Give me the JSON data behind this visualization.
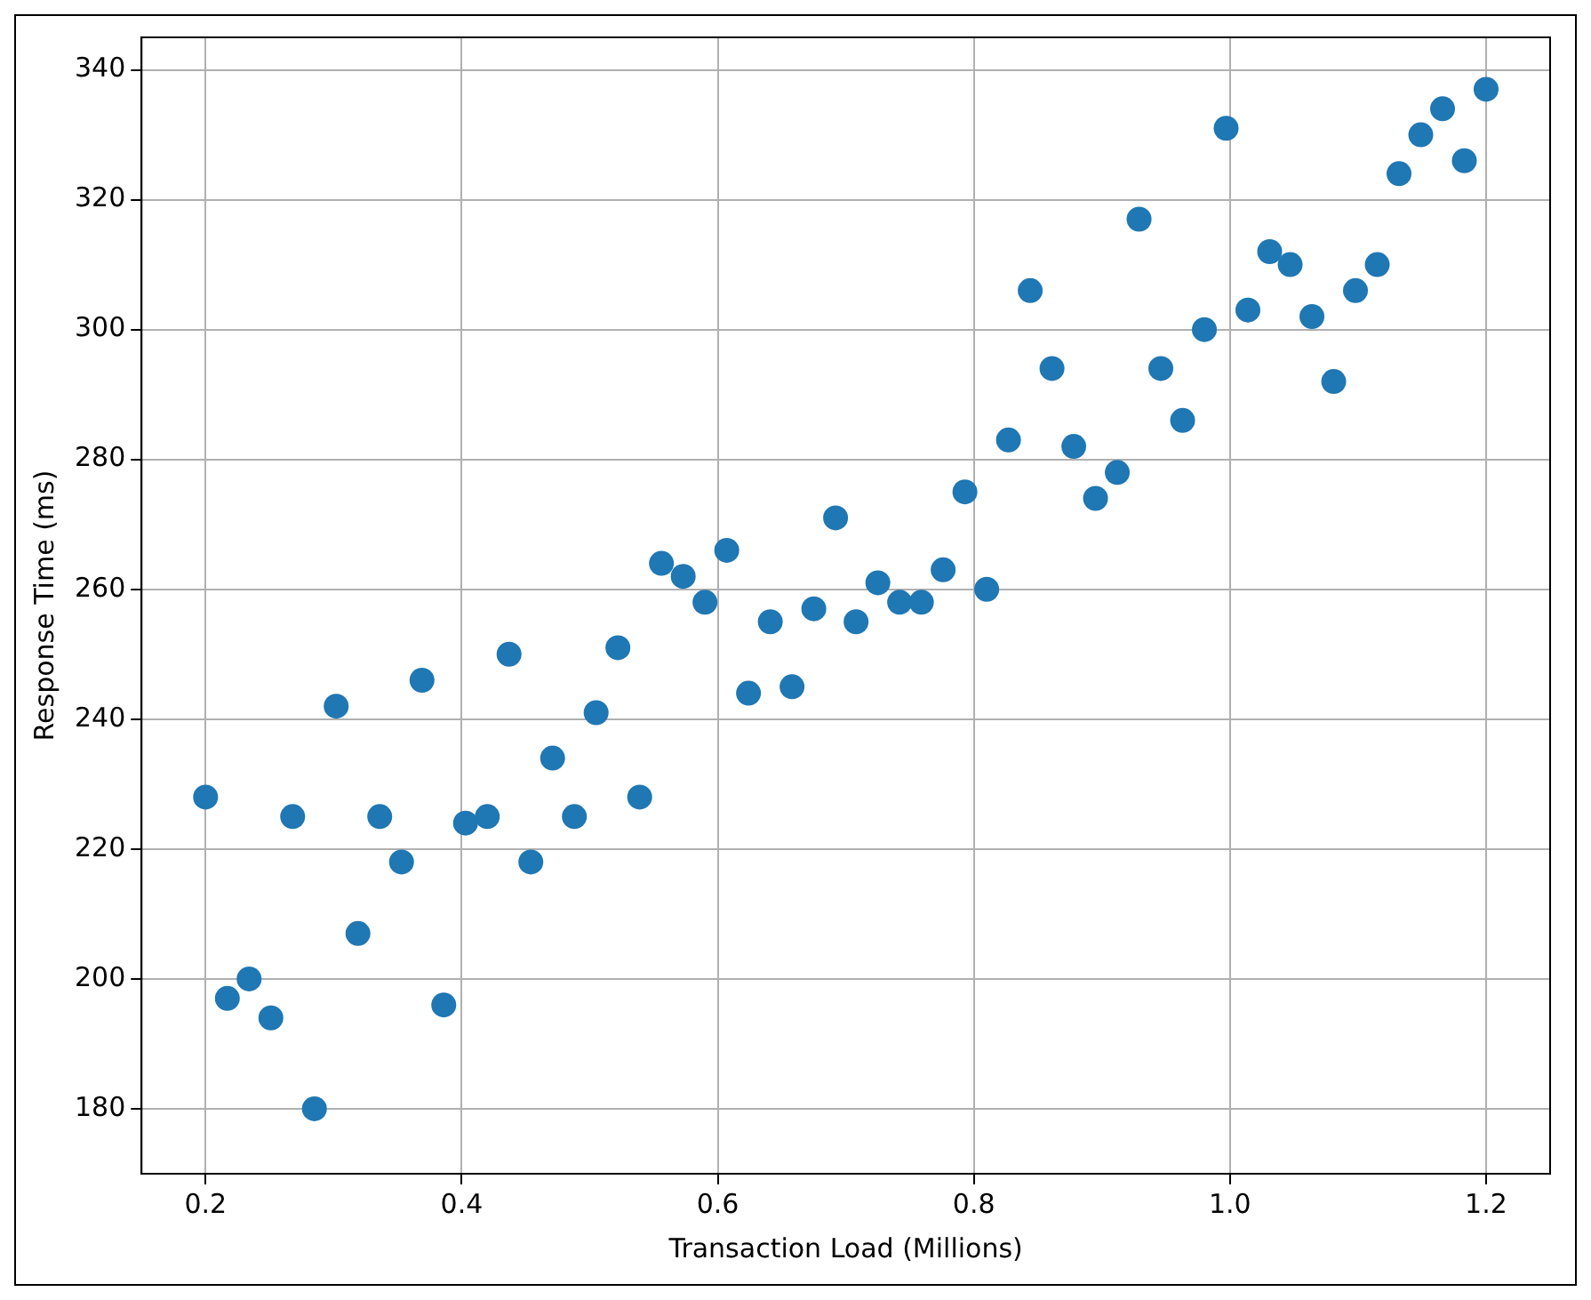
{
  "chart_data": {
    "type": "scatter",
    "xlabel": "Transaction Load (Millions)",
    "ylabel": "Response Time (ms)",
    "x": [
      0.2,
      0.217,
      0.234,
      0.251,
      0.268,
      0.285,
      0.302,
      0.319,
      0.336,
      0.353,
      0.369,
      0.386,
      0.403,
      0.42,
      0.437,
      0.454,
      0.471,
      0.488,
      0.505,
      0.522,
      0.539,
      0.556,
      0.573,
      0.59,
      0.607,
      0.624,
      0.641,
      0.658,
      0.675,
      0.692,
      0.708,
      0.725,
      0.742,
      0.759,
      0.776,
      0.793,
      0.81,
      0.827,
      0.844,
      0.861,
      0.878,
      0.895,
      0.912,
      0.929,
      0.946,
      0.963,
      0.98,
      0.997,
      1.014,
      1.031,
      1.047,
      1.064,
      1.081,
      1.098,
      1.115,
      1.132,
      1.149,
      1.166,
      1.183,
      1.2
    ],
    "values": [
      228,
      197,
      200,
      194,
      225,
      180,
      242,
      207,
      225,
      218,
      246,
      196,
      224,
      225,
      250,
      218,
      234,
      225,
      241,
      251,
      228,
      264,
      262,
      258,
      266,
      244,
      255,
      245,
      257,
      271,
      255,
      261,
      258,
      258,
      263,
      275,
      260,
      283,
      306,
      294,
      282,
      274,
      278,
      317,
      294,
      286,
      300,
      331,
      303,
      312,
      310,
      302,
      292,
      306,
      310,
      324,
      330,
      334,
      326,
      337
    ],
    "color": "#1f77b4",
    "marker": "circle",
    "grid": true,
    "xlim": [
      0.15,
      1.25
    ],
    "xticks": [
      0.2,
      0.4,
      0.6,
      0.8,
      {
        "value": 1,
        "label": "1.0"
      },
      1.2
    ],
    "ylim": [
      170,
      345
    ],
    "yticks": [
      180,
      200,
      220,
      240,
      260,
      280,
      300,
      320,
      340
    ]
  }
}
